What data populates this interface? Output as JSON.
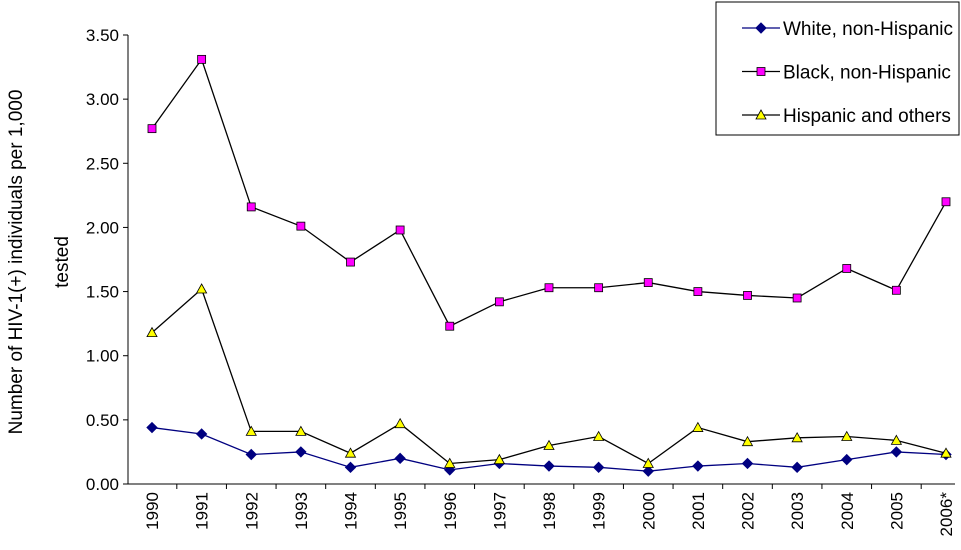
{
  "chart_data": {
    "type": "line",
    "ylabel": [
      "Number of HIV-1(+) individuals per 1,000",
      "tested"
    ],
    "categories": [
      "1990",
      "1991",
      "1992",
      "1993",
      "1994",
      "1995",
      "1996",
      "1997",
      "1998",
      "1999",
      "2000",
      "2001",
      "2002",
      "2003",
      "2004",
      "2005",
      "2006*"
    ],
    "series": [
      {
        "name": "White, non-Hispanic",
        "color": "#000080",
        "marker": "diamond",
        "marker_color": "#000080",
        "values": [
          0.44,
          0.39,
          0.23,
          0.25,
          0.13,
          0.2,
          0.11,
          0.16,
          0.14,
          0.13,
          0.1,
          0.14,
          0.16,
          0.13,
          0.19,
          0.25,
          0.23
        ]
      },
      {
        "name": "Black, non-Hispanic",
        "color": "#000000",
        "marker": "square",
        "marker_color": "#ff00ff",
        "values": [
          2.77,
          3.31,
          2.16,
          2.01,
          1.73,
          1.98,
          1.23,
          1.42,
          1.53,
          1.53,
          1.57,
          1.5,
          1.47,
          1.45,
          1.68,
          1.51,
          2.2
        ]
      },
      {
        "name": "Hispanic and others",
        "color": "#000000",
        "marker": "triangle",
        "marker_color": "#ffff00",
        "values": [
          1.18,
          1.52,
          0.41,
          0.41,
          0.24,
          0.47,
          0.16,
          0.19,
          0.3,
          0.37,
          0.16,
          0.44,
          0.33,
          0.36,
          0.37,
          0.34,
          0.24
        ]
      }
    ],
    "ylim": [
      0,
      3.5
    ],
    "yticks": [
      {
        "value": 0,
        "label": "0.00"
      },
      {
        "value": 0.5,
        "label": "0.50"
      },
      {
        "value": 1,
        "label": "1.00"
      },
      {
        "value": 1.5,
        "label": "1.50"
      },
      {
        "value": 2,
        "label": "2.00"
      },
      {
        "value": 2.5,
        "label": "2.50"
      },
      {
        "value": 3,
        "label": "3.00"
      },
      {
        "value": 3.5,
        "label": "3.50"
      }
    ],
    "grid": false,
    "legend": "top-right"
  }
}
